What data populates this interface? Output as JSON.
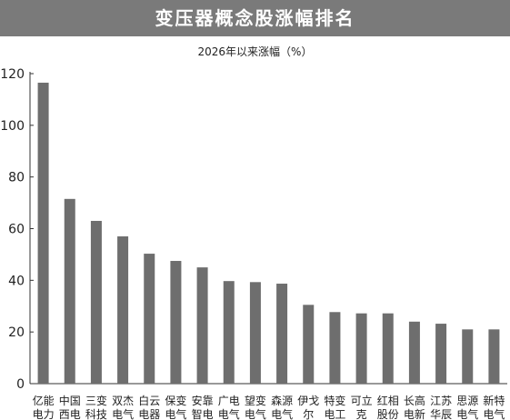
{
  "title": "变压器概念股涨幅排名",
  "subtitle": "2026年以来涨幅（%）",
  "chart_data": {
    "type": "bar",
    "title": "变压器概念股涨幅排名",
    "subtitle": "2026年以来涨幅（%）",
    "xlabel": "",
    "ylabel": "",
    "ylim": [
      0,
      120
    ],
    "yticks": [
      0,
      20,
      40,
      60,
      80,
      100,
      120
    ],
    "grid": false,
    "bar_color": "#6e6e6e",
    "categories": [
      [
        "亿能",
        "电力"
      ],
      [
        "中国",
        "西电"
      ],
      [
        "三变",
        "科技"
      ],
      [
        "双杰",
        "电气"
      ],
      [
        "白云",
        "电器"
      ],
      [
        "保变",
        "电气"
      ],
      [
        "安靠",
        "智电"
      ],
      [
        "广电",
        "电气"
      ],
      [
        "望变",
        "电气"
      ],
      [
        "森源",
        "电气"
      ],
      [
        "伊戈",
        "尔"
      ],
      [
        "特变",
        "电工"
      ],
      [
        "可立",
        "克"
      ],
      [
        "红相",
        "股份"
      ],
      [
        "长高",
        "电新"
      ],
      [
        "江苏",
        "华辰"
      ],
      [
        "思源",
        "电气"
      ],
      [
        "新特",
        "电气"
      ]
    ],
    "values": [
      116.5,
      71.5,
      63,
      57,
      50.3,
      47.5,
      45,
      39.7,
      39.3,
      38.7,
      30.5,
      27.7,
      27.2,
      27.2,
      24,
      23.2,
      21,
      21
    ]
  }
}
